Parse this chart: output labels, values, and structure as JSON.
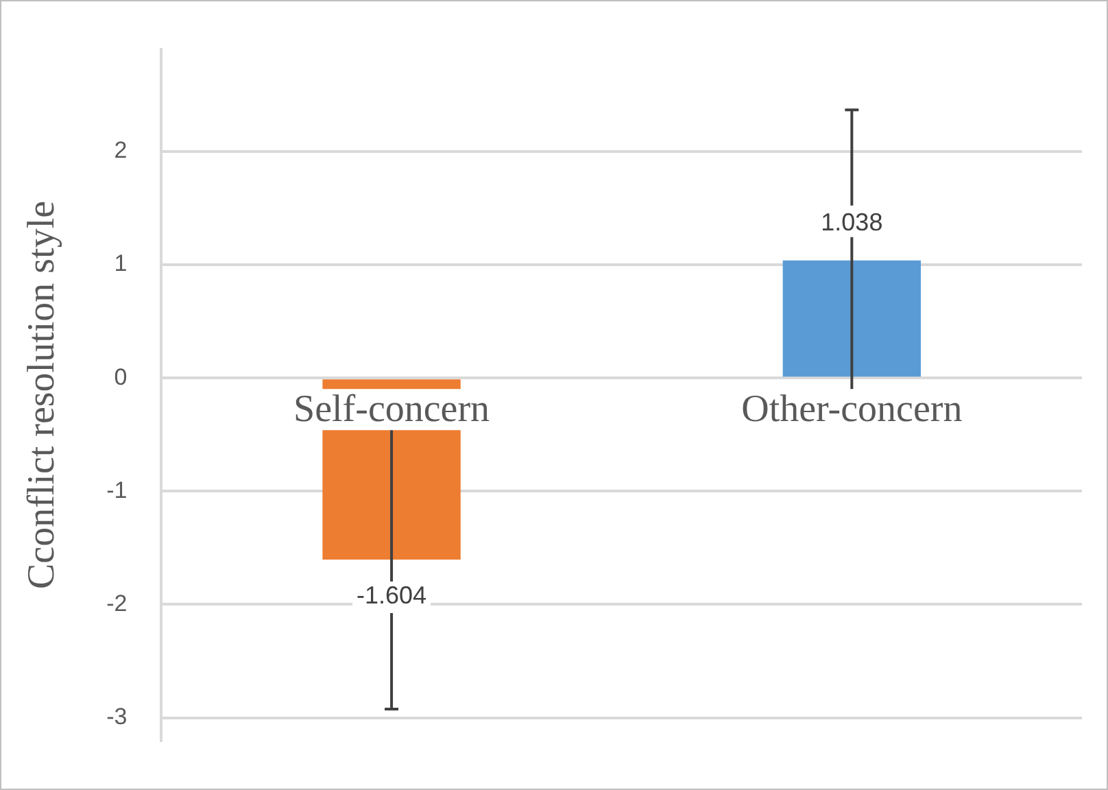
{
  "chart_data": {
    "type": "bar",
    "ylabel": "Cconflict resolution style",
    "categories": [
      "Self-concern",
      "Other-concern"
    ],
    "values": [
      -1.604,
      1.038
    ],
    "colors": [
      "#ed7d31",
      "#5b9bd5"
    ],
    "errors": [
      1.32,
      1.33
    ],
    "ylim": [
      -3.2,
      2.9
    ],
    "yticks": [
      -3,
      -2,
      -1,
      0,
      1,
      2
    ],
    "grid": "y",
    "legend": false,
    "data_labels": true
  }
}
